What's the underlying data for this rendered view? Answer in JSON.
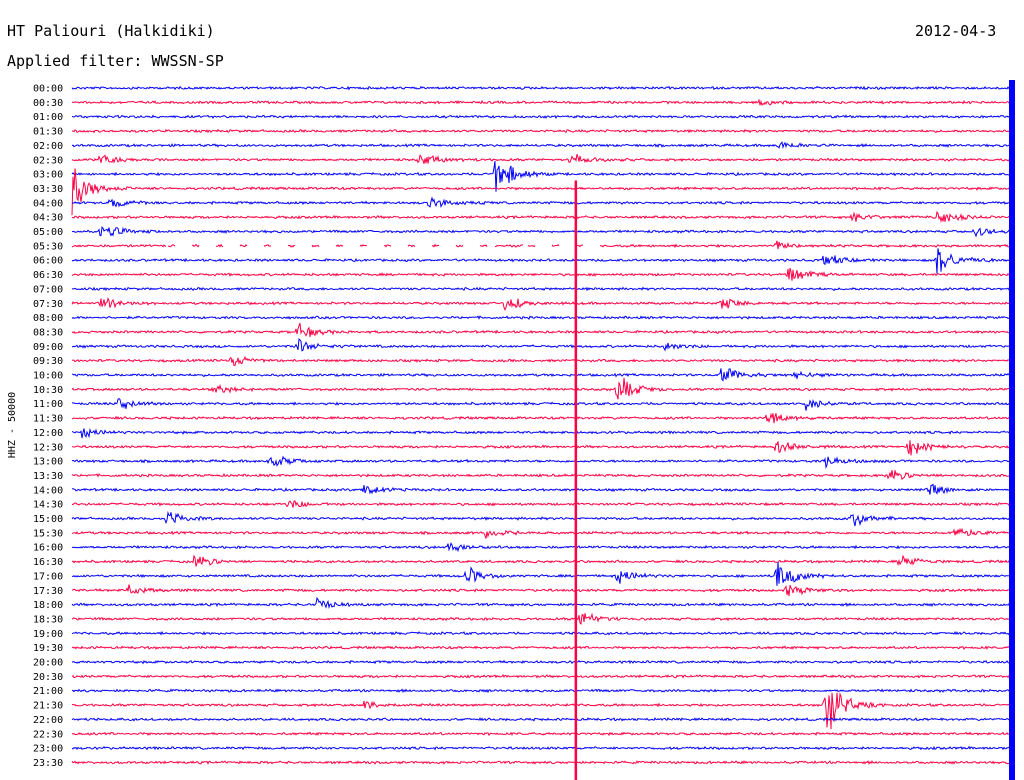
{
  "header": {
    "station": "HT Paliouri (Halkidiki)",
    "filter": "Applied filter: WWSSN-SP",
    "date": "2012-04-3"
  },
  "chart_data": {
    "type": "line",
    "title": "HT Paliouri (Halkidiki)",
    "subtitle": "Applied filter: WWSSN-SP",
    "ylabel": "HHZ - 50000",
    "xlabel": "",
    "row_labels": [
      "00:00",
      "00:30",
      "01:00",
      "01:30",
      "02:00",
      "02:30",
      "03:00",
      "03:30",
      "04:00",
      "04:30",
      "05:00",
      "05:30",
      "06:00",
      "06:30",
      "07:00",
      "07:30",
      "08:00",
      "08:30",
      "09:00",
      "09:30",
      "10:00",
      "10:30",
      "11:00",
      "11:30",
      "12:00",
      "12:30",
      "13:00",
      "13:30",
      "14:00",
      "14:30",
      "15:00",
      "15:30",
      "16:00",
      "16:30",
      "17:00",
      "17:30",
      "18:00",
      "18:30",
      "19:00",
      "19:30",
      "20:00",
      "20:30",
      "21:00",
      "21:30",
      "22:00",
      "22:30",
      "23:00",
      "23:30"
    ],
    "trace_colors": [
      "#0000ff",
      "#ff0044"
    ],
    "background": "#ffffff",
    "events": [
      {
        "row": "00:30",
        "x_fraction": 0.73,
        "amplitude": 4
      },
      {
        "row": "02:00",
        "x_fraction": 0.75,
        "amplitude": 6
      },
      {
        "row": "02:30",
        "x_fraction": 0.03,
        "amplitude": 8
      },
      {
        "row": "02:30",
        "x_fraction": 0.37,
        "amplitude": 8
      },
      {
        "row": "02:30",
        "x_fraction": 0.53,
        "amplitude": 7
      },
      {
        "row": "03:00",
        "x_fraction": 0.45,
        "amplitude": 30
      },
      {
        "row": "03:30",
        "x_fraction": 0.0,
        "amplitude": 30
      },
      {
        "row": "04:00",
        "x_fraction": 0.04,
        "amplitude": 8
      },
      {
        "row": "04:00",
        "x_fraction": 0.38,
        "amplitude": 8
      },
      {
        "row": "04:30",
        "x_fraction": 0.83,
        "amplitude": 6
      },
      {
        "row": "04:30",
        "x_fraction": 0.92,
        "amplitude": 10
      },
      {
        "row": "05:00",
        "x_fraction": 0.03,
        "amplitude": 12
      },
      {
        "row": "05:00",
        "x_fraction": 0.96,
        "amplitude": 6
      },
      {
        "row": "05:30",
        "x_fraction": 0.75,
        "amplitude": 5
      },
      {
        "row": "06:00",
        "x_fraction": 0.8,
        "amplitude": 8
      },
      {
        "row": "06:00",
        "x_fraction": 0.92,
        "amplitude": 22
      },
      {
        "row": "06:30",
        "x_fraction": 0.76,
        "amplitude": 12
      },
      {
        "row": "07:30",
        "x_fraction": 0.03,
        "amplitude": 8
      },
      {
        "row": "07:30",
        "x_fraction": 0.46,
        "amplitude": 10
      },
      {
        "row": "07:30",
        "x_fraction": 0.69,
        "amplitude": 8
      },
      {
        "row": "08:30",
        "x_fraction": 0.24,
        "amplitude": 10
      },
      {
        "row": "09:00",
        "x_fraction": 0.24,
        "amplitude": 8
      },
      {
        "row": "09:00",
        "x_fraction": 0.63,
        "amplitude": 5
      },
      {
        "row": "09:30",
        "x_fraction": 0.17,
        "amplitude": 7
      },
      {
        "row": "10:00",
        "x_fraction": 0.69,
        "amplitude": 12
      },
      {
        "row": "10:00",
        "x_fraction": 0.77,
        "amplitude": 5
      },
      {
        "row": "10:30",
        "x_fraction": 0.15,
        "amplitude": 6
      },
      {
        "row": "10:30",
        "x_fraction": 0.58,
        "amplitude": 18
      },
      {
        "row": "11:00",
        "x_fraction": 0.05,
        "amplitude": 9
      },
      {
        "row": "11:00",
        "x_fraction": 0.78,
        "amplitude": 8
      },
      {
        "row": "11:30",
        "x_fraction": 0.74,
        "amplitude": 10
      },
      {
        "row": "12:00",
        "x_fraction": 0.01,
        "amplitude": 6
      },
      {
        "row": "12:30",
        "x_fraction": 0.75,
        "amplitude": 8
      },
      {
        "row": "12:30",
        "x_fraction": 0.89,
        "amplitude": 12
      },
      {
        "row": "13:00",
        "x_fraction": 0.21,
        "amplitude": 10
      },
      {
        "row": "13:00",
        "x_fraction": 0.8,
        "amplitude": 8
      },
      {
        "row": "13:30",
        "x_fraction": 0.87,
        "amplitude": 8
      },
      {
        "row": "14:00",
        "x_fraction": 0.31,
        "amplitude": 8
      },
      {
        "row": "14:00",
        "x_fraction": 0.91,
        "amplitude": 8
      },
      {
        "row": "14:30",
        "x_fraction": 0.23,
        "amplitude": 6
      },
      {
        "row": "15:00",
        "x_fraction": 0.1,
        "amplitude": 10
      },
      {
        "row": "15:00",
        "x_fraction": 0.83,
        "amplitude": 10
      },
      {
        "row": "15:30",
        "x_fraction": 0.44,
        "amplitude": 6
      },
      {
        "row": "15:30",
        "x_fraction": 0.94,
        "amplitude": 9
      },
      {
        "row": "16:00",
        "x_fraction": 0.4,
        "amplitude": 5
      },
      {
        "row": "16:30",
        "x_fraction": 0.13,
        "amplitude": 9
      },
      {
        "row": "16:30",
        "x_fraction": 0.88,
        "amplitude": 9
      },
      {
        "row": "16:30",
        "x_fraction": 1.0,
        "amplitude": 12
      },
      {
        "row": "17:00",
        "x_fraction": 0.42,
        "amplitude": 10
      },
      {
        "row": "17:00",
        "x_fraction": 0.58,
        "amplitude": 9
      },
      {
        "row": "17:00",
        "x_fraction": 0.75,
        "amplitude": 22
      },
      {
        "row": "17:30",
        "x_fraction": 0.06,
        "amplitude": 6
      },
      {
        "row": "17:30",
        "x_fraction": 0.76,
        "amplitude": 10
      },
      {
        "row": "18:00",
        "x_fraction": 0.26,
        "amplitude": 8
      },
      {
        "row": "18:30",
        "x_fraction": 0.54,
        "amplitude": 10
      },
      {
        "row": "21:30",
        "x_fraction": 0.31,
        "amplitude": 6
      },
      {
        "row": "21:30",
        "x_fraction": 0.8,
        "amplitude": 45
      }
    ],
    "gaps": [
      {
        "row": "05:30",
        "from_fraction": 0.1,
        "to_fraction": 0.45
      },
      {
        "row": "05:30",
        "from_fraction": 0.48,
        "to_fraction": 0.57
      }
    ],
    "spikes": [
      {
        "x_fraction": 0.536,
        "from_row": "03:30",
        "to_row": "23:30",
        "color": "#ff0044"
      },
      {
        "x_fraction": 1.0,
        "from_row": "00:00",
        "to_row": "23:30",
        "color": "#0000ff"
      }
    ]
  }
}
